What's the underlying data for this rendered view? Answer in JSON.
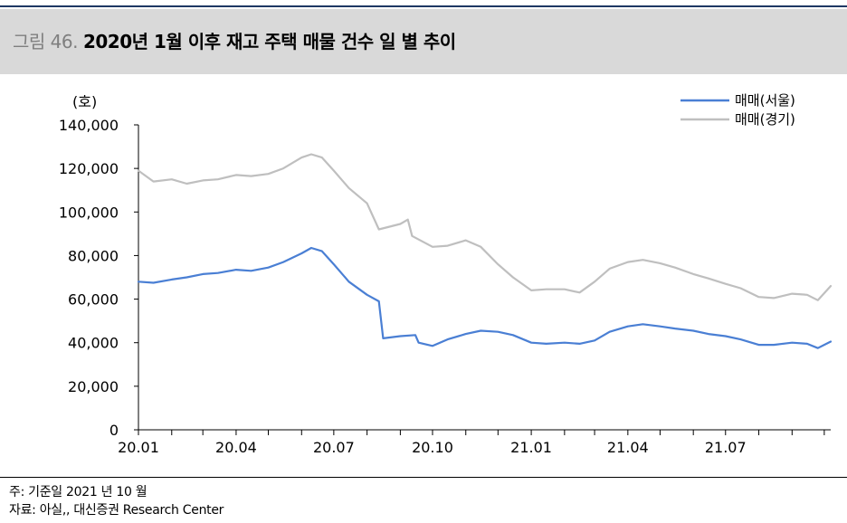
{
  "header": {
    "figure_prefix": "그림 46.",
    "title": "2020년 1월 이후 재고 주택 매물 건수 일 별 추이"
  },
  "footer": {
    "note": "주: 기준일 2021 년 10 월",
    "source": "자료: 아실,, 대신증권 Research Center"
  },
  "colors": {
    "seoul": "#4a7fd4",
    "gyeonggi": "#bfbfbf",
    "axis": "#000000"
  },
  "chart_data": {
    "type": "line",
    "y_unit_label": "(호)",
    "ylim": [
      0,
      140000
    ],
    "yticks": [
      0,
      20000,
      40000,
      60000,
      80000,
      100000,
      120000,
      140000
    ],
    "ytick_labels": [
      "0",
      "20,000",
      "40,000",
      "60,000",
      "80,000",
      "100,000",
      "120,000",
      "140,000"
    ],
    "x_tick_labels": [
      "20.01",
      "20.04",
      "20.07",
      "20.10",
      "21.01",
      "21.04",
      "21.07"
    ],
    "x_range": [
      "2020-01-01",
      "2021-10-07"
    ],
    "grid": false,
    "legend_position": "top-right",
    "series": [
      {
        "name": "매매(서울)",
        "color": "#4a7fd4",
        "points": [
          [
            "2020-01-01",
            68000
          ],
          [
            "2020-01-15",
            67500
          ],
          [
            "2020-02-01",
            69000
          ],
          [
            "2020-02-15",
            70000
          ],
          [
            "2020-03-01",
            71500
          ],
          [
            "2020-03-15",
            72000
          ],
          [
            "2020-04-01",
            73500
          ],
          [
            "2020-04-15",
            73000
          ],
          [
            "2020-05-01",
            74500
          ],
          [
            "2020-05-15",
            77000
          ],
          [
            "2020-06-01",
            81000
          ],
          [
            "2020-06-10",
            83500
          ],
          [
            "2020-06-20",
            82000
          ],
          [
            "2020-07-01",
            76000
          ],
          [
            "2020-07-15",
            68000
          ],
          [
            "2020-08-01",
            62000
          ],
          [
            "2020-08-12",
            59000
          ],
          [
            "2020-08-16",
            42000
          ],
          [
            "2020-09-01",
            43000
          ],
          [
            "2020-09-15",
            43500
          ],
          [
            "2020-09-18",
            40000
          ],
          [
            "2020-10-01",
            38500
          ],
          [
            "2020-10-15",
            41500
          ],
          [
            "2020-11-01",
            44000
          ],
          [
            "2020-11-15",
            45500
          ],
          [
            "2020-12-01",
            45000
          ],
          [
            "2020-12-15",
            43500
          ],
          [
            "2021-01-01",
            40000
          ],
          [
            "2021-01-15",
            39500
          ],
          [
            "2021-02-01",
            40000
          ],
          [
            "2021-02-15",
            39500
          ],
          [
            "2021-03-01",
            41000
          ],
          [
            "2021-03-15",
            45000
          ],
          [
            "2021-04-01",
            47500
          ],
          [
            "2021-04-15",
            48500
          ],
          [
            "2021-05-01",
            47500
          ],
          [
            "2021-05-15",
            46500
          ],
          [
            "2021-06-01",
            45500
          ],
          [
            "2021-06-15",
            44000
          ],
          [
            "2021-07-01",
            43000
          ],
          [
            "2021-07-15",
            41500
          ],
          [
            "2021-08-01",
            39000
          ],
          [
            "2021-08-15",
            39000
          ],
          [
            "2021-09-01",
            40000
          ],
          [
            "2021-09-15",
            39500
          ],
          [
            "2021-09-25",
            37500
          ],
          [
            "2021-10-07",
            40500
          ]
        ]
      },
      {
        "name": "매매(경기)",
        "color": "#bfbfbf",
        "points": [
          [
            "2020-01-01",
            119000
          ],
          [
            "2020-01-15",
            114000
          ],
          [
            "2020-02-01",
            115000
          ],
          [
            "2020-02-15",
            113000
          ],
          [
            "2020-03-01",
            114500
          ],
          [
            "2020-03-15",
            115000
          ],
          [
            "2020-04-01",
            117000
          ],
          [
            "2020-04-15",
            116500
          ],
          [
            "2020-05-01",
            117500
          ],
          [
            "2020-05-15",
            120000
          ],
          [
            "2020-06-01",
            125000
          ],
          [
            "2020-06-10",
            126500
          ],
          [
            "2020-06-20",
            125000
          ],
          [
            "2020-07-01",
            119000
          ],
          [
            "2020-07-15",
            111000
          ],
          [
            "2020-08-01",
            104000
          ],
          [
            "2020-08-12",
            92000
          ],
          [
            "2020-09-01",
            94500
          ],
          [
            "2020-09-08",
            96500
          ],
          [
            "2020-09-12",
            89000
          ],
          [
            "2020-10-01",
            84000
          ],
          [
            "2020-10-15",
            84500
          ],
          [
            "2020-11-01",
            87000
          ],
          [
            "2020-11-15",
            84000
          ],
          [
            "2020-12-01",
            76000
          ],
          [
            "2020-12-15",
            70000
          ],
          [
            "2021-01-01",
            64000
          ],
          [
            "2021-01-15",
            64500
          ],
          [
            "2021-02-01",
            64500
          ],
          [
            "2021-02-15",
            63000
          ],
          [
            "2021-03-01",
            68000
          ],
          [
            "2021-03-15",
            74000
          ],
          [
            "2021-04-01",
            77000
          ],
          [
            "2021-04-15",
            78000
          ],
          [
            "2021-05-01",
            76500
          ],
          [
            "2021-05-15",
            74500
          ],
          [
            "2021-06-01",
            71500
          ],
          [
            "2021-06-15",
            69500
          ],
          [
            "2021-07-01",
            67000
          ],
          [
            "2021-07-15",
            65000
          ],
          [
            "2021-08-01",
            61000
          ],
          [
            "2021-08-15",
            60500
          ],
          [
            "2021-09-01",
            62500
          ],
          [
            "2021-09-15",
            62000
          ],
          [
            "2021-09-25",
            59500
          ],
          [
            "2021-10-07",
            66000
          ]
        ]
      }
    ]
  }
}
